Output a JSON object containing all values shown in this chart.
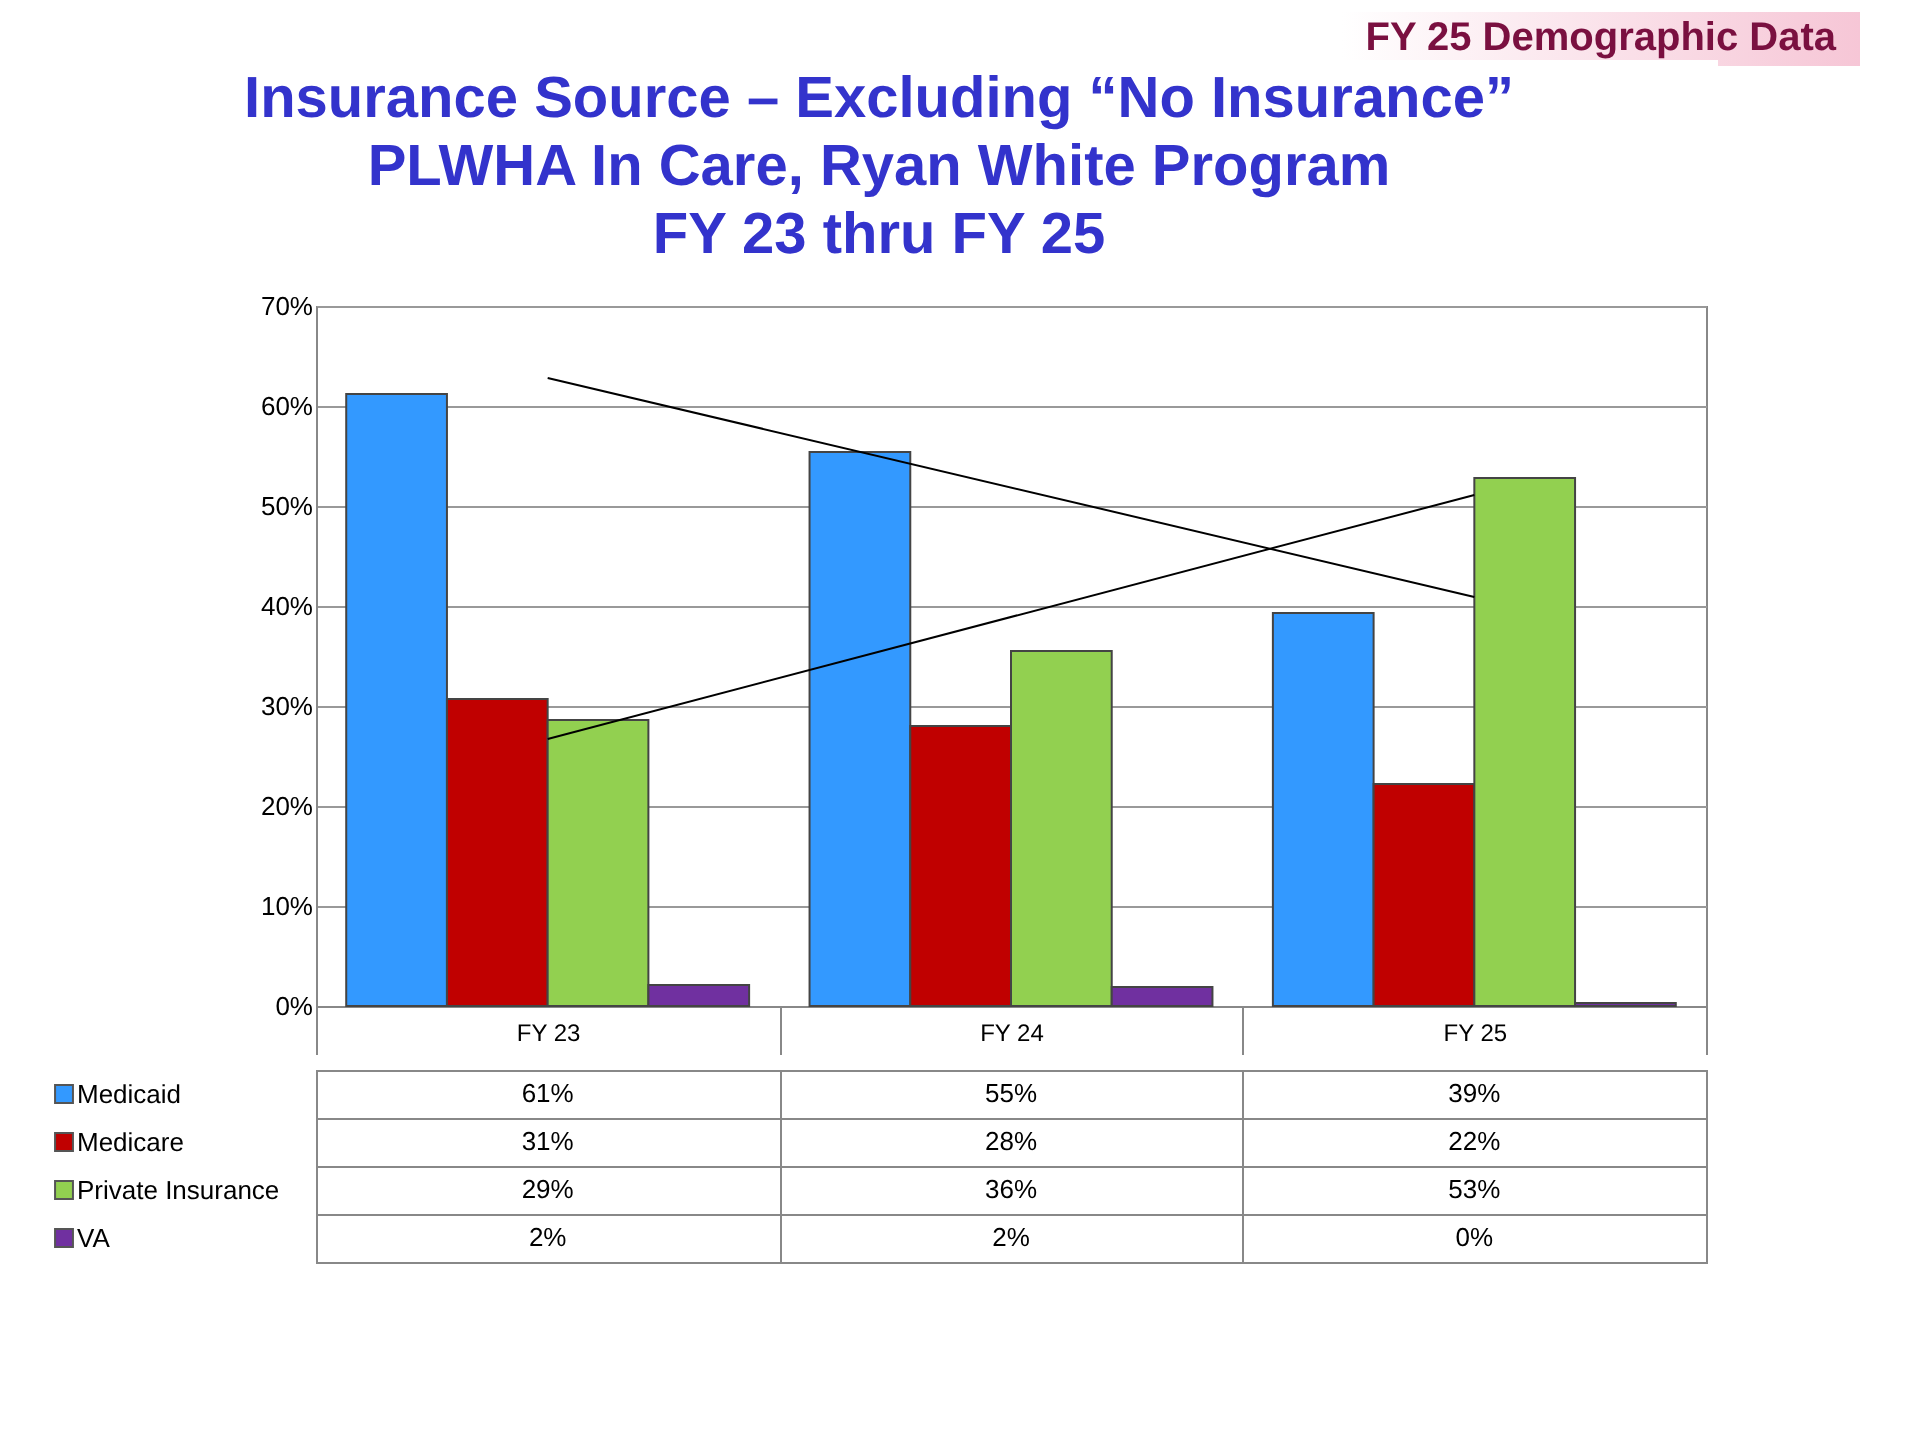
{
  "chart_data": {
    "type": "bar",
    "title": [
      "Insurance Source – Excluding “No Insurance”",
      "PLWHA In Care, Ryan White Program",
      "FY 23 thru FY 25"
    ],
    "annotations": [
      "FY 25 Demographic Data"
    ],
    "categories": [
      "FY 23",
      "FY 24",
      "FY 25"
    ],
    "series": [
      {
        "name": "Medicaid",
        "color": "#3399ff",
        "values": [
          61.2,
          55.4,
          39.3
        ],
        "value_labels": [
          "61%",
          "55%",
          "39%"
        ]
      },
      {
        "name": "Medicare",
        "color": "#c00000",
        "values": [
          30.7,
          28.0,
          22.2
        ],
        "value_labels": [
          "31%",
          "28%",
          "22%"
        ]
      },
      {
        "name": "Private Insurance",
        "color": "#92d050",
        "values": [
          28.6,
          35.5,
          52.8
        ],
        "value_labels": [
          "29%",
          "36%",
          "53%"
        ]
      },
      {
        "name": "VA",
        "color": "#7030a0",
        "values": [
          2.1,
          1.9,
          0.3
        ],
        "value_labels": [
          "2%",
          "2%",
          "0%"
        ]
      },
      {
        "type": "line",
        "color": "#000000",
        "x": [
          "FY 23",
          "FY 25"
        ],
        "values": [
          62.8,
          40.9
        ]
      },
      {
        "type": "line",
        "color": "#000000",
        "x": [
          "FY 23",
          "FY 25"
        ],
        "values": [
          26.7,
          51.1
        ]
      }
    ],
    "ylim": [
      0,
      70
    ],
    "yticks": [
      {
        "value": 0,
        "label": "0%"
      },
      {
        "value": 10,
        "label": "10%"
      },
      {
        "value": 20,
        "label": "20%"
      },
      {
        "value": 30,
        "label": "30%"
      },
      {
        "value": 40,
        "label": "40%"
      },
      {
        "value": 50,
        "label": "50%"
      },
      {
        "value": 60,
        "label": "60%"
      },
      {
        "value": 70,
        "label": "70%"
      }
    ],
    "grid": "y",
    "legend": "bottom"
  }
}
